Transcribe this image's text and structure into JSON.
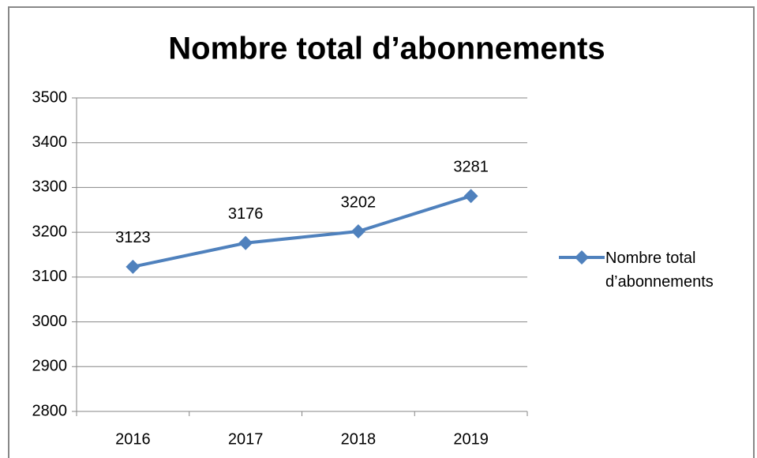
{
  "chart_data": {
    "type": "line",
    "title": "Nombre total d’abonnements",
    "categories": [
      "2016",
      "2017",
      "2018",
      "2019"
    ],
    "series": [
      {
        "name": "Nombre total d’abonnements",
        "color": "#4f81bd",
        "values": [
          3123,
          3176,
          3202,
          3281
        ]
      }
    ],
    "ylim": [
      2800,
      3500
    ],
    "yticks": [
      2800,
      2900,
      3000,
      3100,
      3200,
      3300,
      3400,
      3500
    ],
    "grid": true,
    "legend": "right",
    "data_labels": true
  }
}
